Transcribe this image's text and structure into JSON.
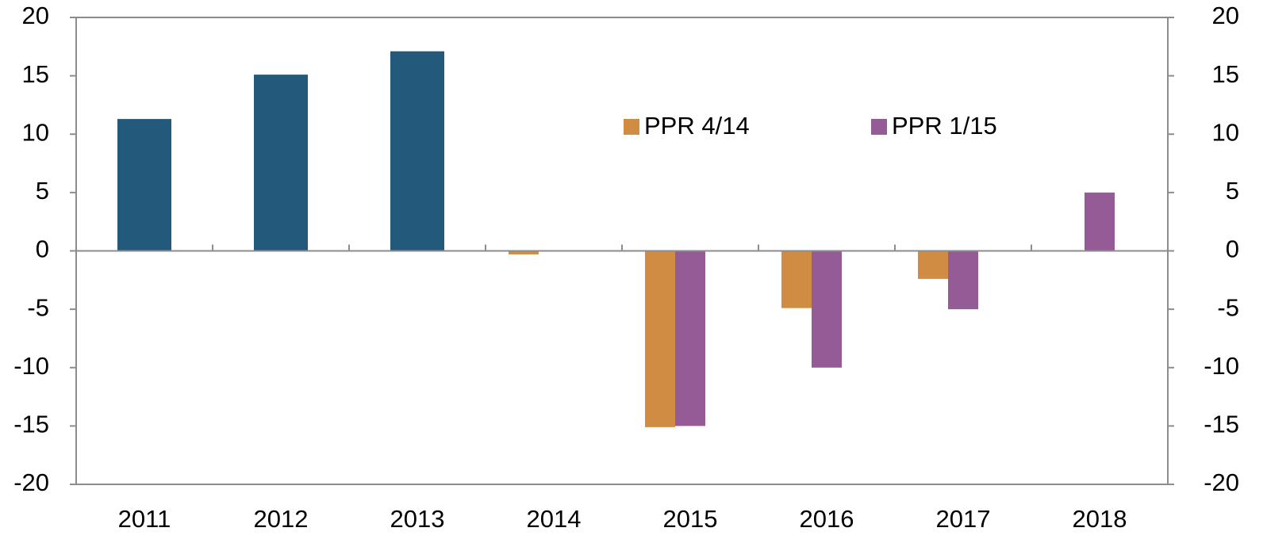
{
  "chart_data": {
    "type": "bar",
    "categories": [
      "2011",
      "2012",
      "2013",
      "2014",
      "2015",
      "2016",
      "2017",
      "2018"
    ],
    "series": [
      {
        "color": "#23597a",
        "values": [
          11.3,
          15.1,
          17.1,
          null,
          null,
          null,
          null,
          null
        ]
      },
      {
        "name": "PPR 4/14",
        "color": "#cf8c42",
        "values": [
          null,
          null,
          null,
          -0.3,
          -15.1,
          -4.9,
          -2.4,
          null
        ]
      },
      {
        "name": "PPR 1/15",
        "color": "#955b97",
        "values": [
          null,
          null,
          null,
          null,
          -15,
          -10,
          -5,
          5
        ]
      }
    ],
    "ylim": [
      -20,
      20
    ],
    "yticks": [
      -20,
      -15,
      -10,
      -5,
      0,
      5,
      10,
      15,
      20
    ],
    "y2lim": [
      -20,
      20
    ],
    "y2ticks": [
      -20,
      -15,
      -10,
      -5,
      0,
      5,
      10,
      15,
      20
    ],
    "legend": "top-right"
  }
}
